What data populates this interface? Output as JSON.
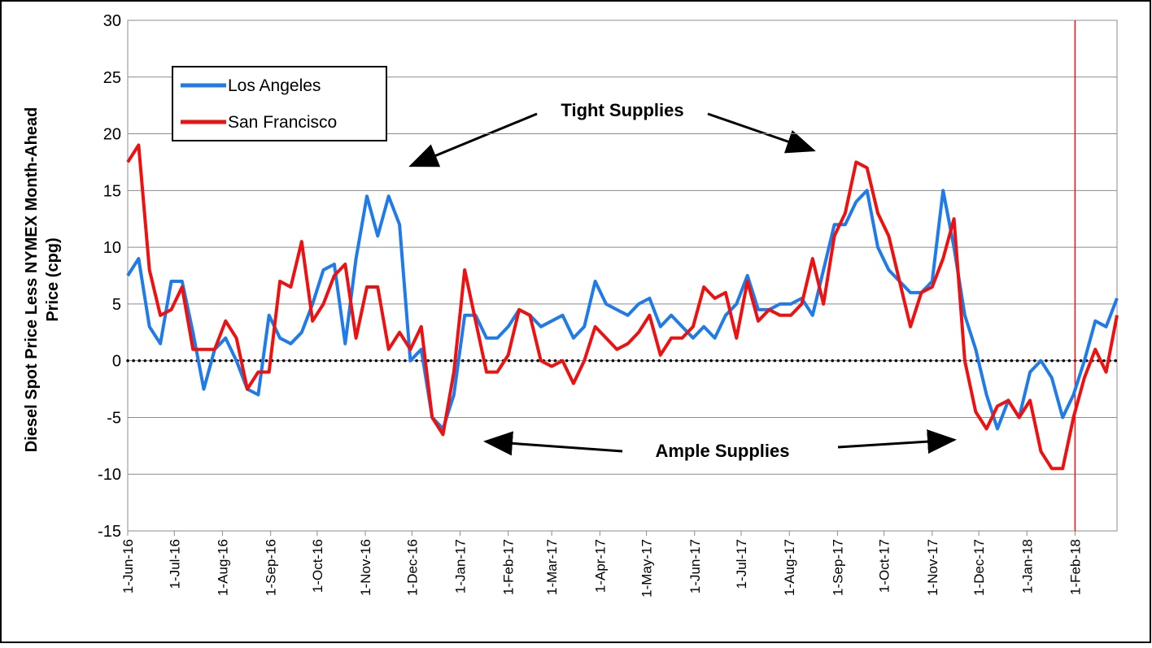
{
  "chart_data": {
    "type": "line",
    "y_label": [
      "Diesel Spot Price Less NYMEX Month-Ahead",
      "Price (cpg)"
    ],
    "annotations": [
      "Tight Supplies",
      "Ample Supplies"
    ],
    "x": [
      "2016-06-01",
      "2016-06-08",
      "2016-06-15",
      "2016-06-22",
      "2016-06-29",
      "2016-07-06",
      "2016-07-13",
      "2016-07-20",
      "2016-07-27",
      "2016-08-03",
      "2016-08-10",
      "2016-08-17",
      "2016-08-24",
      "2016-08-31",
      "2016-09-07",
      "2016-09-14",
      "2016-09-21",
      "2016-09-28",
      "2016-10-05",
      "2016-10-12",
      "2016-10-19",
      "2016-10-26",
      "2016-11-02",
      "2016-11-09",
      "2016-11-16",
      "2016-11-23",
      "2016-11-30",
      "2016-12-07",
      "2016-12-14",
      "2016-12-21",
      "2016-12-28",
      "2017-01-04",
      "2017-01-11",
      "2017-01-18",
      "2017-01-25",
      "2017-02-01",
      "2017-02-08",
      "2017-02-15",
      "2017-02-22",
      "2017-03-01",
      "2017-03-08",
      "2017-03-15",
      "2017-03-22",
      "2017-03-29",
      "2017-04-05",
      "2017-04-12",
      "2017-04-19",
      "2017-04-26",
      "2017-05-03",
      "2017-05-10",
      "2017-05-17",
      "2017-05-24",
      "2017-05-31",
      "2017-06-07",
      "2017-06-14",
      "2017-06-21",
      "2017-06-28",
      "2017-07-05",
      "2017-07-12",
      "2017-07-19",
      "2017-07-26",
      "2017-08-02",
      "2017-08-09",
      "2017-08-16",
      "2017-08-23",
      "2017-08-30",
      "2017-09-06",
      "2017-09-13",
      "2017-09-20",
      "2017-09-27",
      "2017-10-04",
      "2017-10-11",
      "2017-10-18",
      "2017-10-25",
      "2017-11-01",
      "2017-11-08",
      "2017-11-15",
      "2017-11-22",
      "2017-11-29",
      "2017-12-06",
      "2017-12-13",
      "2017-12-20",
      "2017-12-27",
      "2018-01-03",
      "2018-01-10",
      "2018-01-17",
      "2018-01-24",
      "2018-01-31",
      "2018-02-07",
      "2018-02-14",
      "2018-02-21",
      "2018-02-28"
    ],
    "series": [
      {
        "name": "Los Angeles",
        "color": "#1f7be8",
        "values": [
          7.5,
          9,
          3,
          1.5,
          7,
          7,
          2.5,
          -2.5,
          1,
          2,
          0,
          -2.5,
          -3,
          4,
          2,
          1.5,
          2.5,
          5,
          8,
          8.5,
          1.5,
          9,
          14.5,
          11,
          14.5,
          12,
          0,
          1,
          -5,
          -6,
          -3,
          4,
          4,
          2,
          2,
          3,
          4.5,
          4,
          3,
          3.5,
          4,
          2,
          3,
          7,
          5,
          4.5,
          4,
          5,
          5.5,
          3,
          4,
          3,
          2,
          3,
          2,
          4,
          5,
          7.5,
          4.5,
          4.5,
          5,
          5,
          5.5,
          4,
          8,
          12,
          12,
          14,
          15,
          10,
          8,
          7,
          6,
          6,
          7,
          15,
          10,
          4,
          1,
          -3,
          -6,
          -3.5,
          -5,
          -1,
          0,
          -1.5,
          -5,
          -3,
          0,
          3.5,
          3,
          5.5
        ]
      },
      {
        "name": "San Francisco",
        "color": "#ee1111",
        "values": [
          17.5,
          19,
          8,
          4,
          4.5,
          6.5,
          1,
          1,
          1,
          3.5,
          2,
          -2.5,
          -1,
          -1,
          7,
          6.5,
          10.5,
          3.5,
          5,
          7.5,
          8.5,
          2,
          6.5,
          6.5,
          1,
          2.5,
          1,
          3,
          -5,
          -6.5,
          -1,
          8,
          3.5,
          -1,
          -1,
          0.5,
          4.5,
          4,
          0,
          -0.5,
          0,
          -2,
          0,
          3,
          2,
          1,
          1.5,
          2.5,
          4,
          0.5,
          2,
          2,
          3,
          6.5,
          5.5,
          6,
          2,
          7,
          3.5,
          4.5,
          4,
          4,
          5,
          9,
          5,
          11,
          13,
          17.5,
          17,
          13,
          11,
          7,
          3,
          6,
          6.5,
          9,
          12.5,
          0,
          -4.5,
          -6,
          -4,
          -3.5,
          -5,
          -3.5,
          -8,
          -9.5,
          -9.5,
          -5,
          -1.5,
          1,
          -1,
          4
        ]
      }
    ],
    "xlim": [
      "2016-06-01",
      "2018-02-28"
    ],
    "xticks": [
      {
        "value": "2016-06-01",
        "label": "1-Jun-16"
      },
      {
        "value": "2016-07-01",
        "label": "1-Jul-16"
      },
      {
        "value": "2016-08-01",
        "label": "1-Aug-16"
      },
      {
        "value": "2016-09-01",
        "label": "1-Sep-16"
      },
      {
        "value": "2016-10-01",
        "label": "1-Oct-16"
      },
      {
        "value": "2016-11-01",
        "label": "1-Nov-16"
      },
      {
        "value": "2016-12-01",
        "label": "1-Dec-16"
      },
      {
        "value": "2017-01-01",
        "label": "1-Jan-17"
      },
      {
        "value": "2017-02-01",
        "label": "1-Feb-17"
      },
      {
        "value": "2017-03-01",
        "label": "1-Mar-17"
      },
      {
        "value": "2017-04-01",
        "label": "1-Apr-17"
      },
      {
        "value": "2017-05-01",
        "label": "1-May-17"
      },
      {
        "value": "2017-06-01",
        "label": "1-Jun-17"
      },
      {
        "value": "2017-07-01",
        "label": "1-Jul-17"
      },
      {
        "value": "2017-08-01",
        "label": "1-Aug-17"
      },
      {
        "value": "2017-09-01",
        "label": "1-Sep-17"
      },
      {
        "value": "2017-10-01",
        "label": "1-Oct-17"
      },
      {
        "value": "2017-11-01",
        "label": "1-Nov-17"
      },
      {
        "value": "2017-12-01",
        "label": "1-Dec-17"
      },
      {
        "value": "2018-01-01",
        "label": "1-Jan-18"
      },
      {
        "value": "2018-02-01",
        "label": "1-Feb-18"
      }
    ],
    "ylim": [
      -15,
      30
    ],
    "yticks": [
      -15,
      -10,
      -5,
      0,
      5,
      10,
      15,
      20,
      25,
      30
    ],
    "grid": true,
    "reference_line": 0,
    "vline": {
      "x": "2018-02-01",
      "color": "#ee1111"
    },
    "legend": "upper left"
  }
}
